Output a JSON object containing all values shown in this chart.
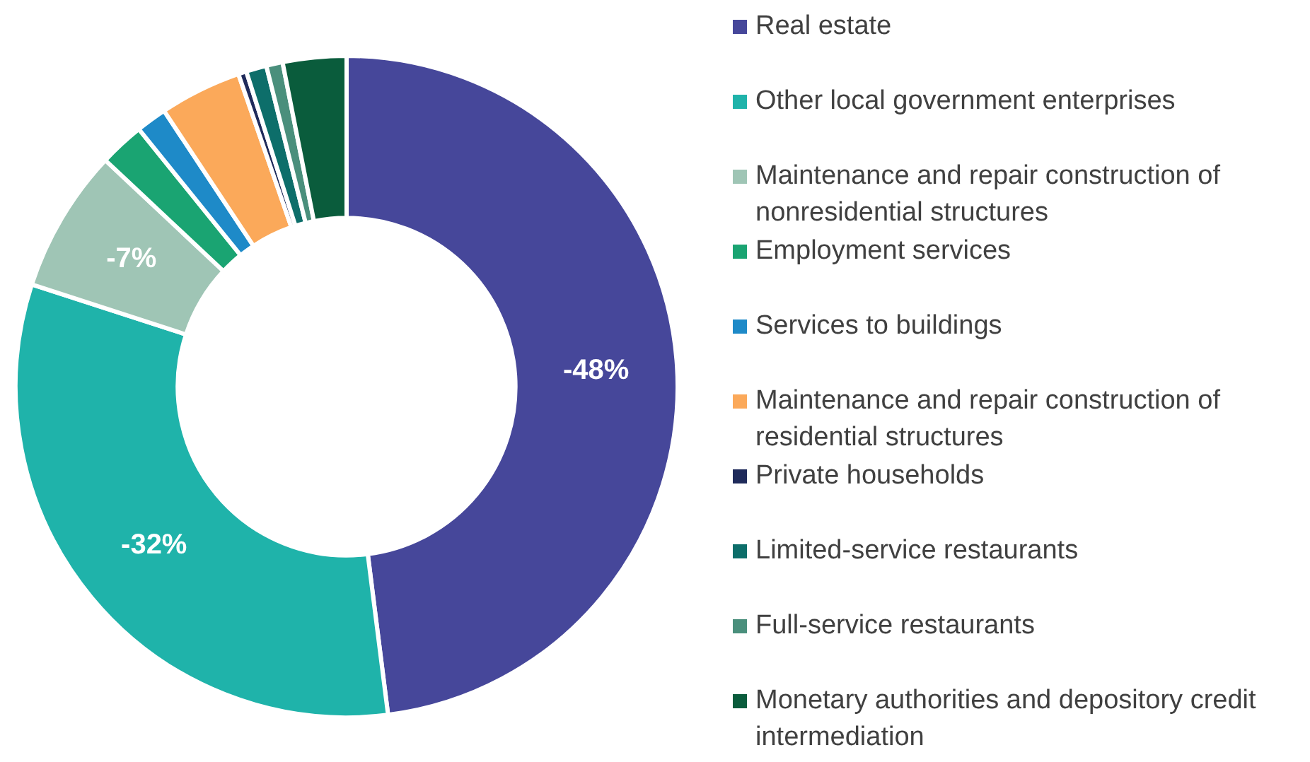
{
  "chart_data": {
    "type": "donut",
    "legend": "right",
    "categories": [
      "Real estate",
      "Other local government enterprises",
      "Maintenance and repair construction of nonresidential structures",
      "Employment services",
      "Services to buildings",
      "Maintenance and repair construction of residential structures",
      "Private households",
      "Limited-service restaurants",
      "Full-service restaurants",
      "Monetary authorities and depository credit intermediation"
    ],
    "values": [
      48,
      32,
      7,
      2.2,
      1.5,
      4,
      0.4,
      1,
      0.8,
      3.1
    ],
    "annotations": [
      {
        "text": "-48%",
        "x": "Real estate"
      },
      {
        "text": "-32%",
        "x": "Other local government enterprises"
      },
      {
        "text": "-7%",
        "x": "Maintenance and repair construction of nonresidential structures"
      }
    ],
    "colors": [
      "#46479a",
      "#1fb3aa",
      "#9fc5b5",
      "#1aa472",
      "#1e8ac8",
      "#fba95a",
      "#1f2b5b",
      "#0d6e6a",
      "#4a8f7c",
      "#0a5c3c"
    ]
  }
}
